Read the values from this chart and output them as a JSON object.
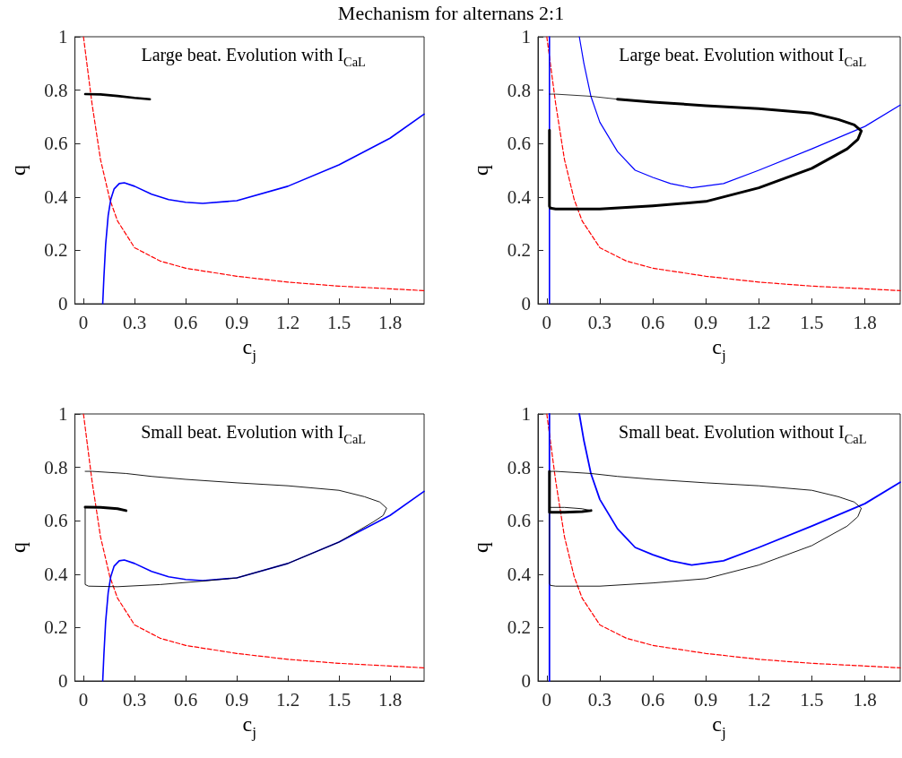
{
  "chart_data": [
    {
      "type": "line",
      "title": "Mechanism for alternans 2:1",
      "xlabel": "c$_{j}$",
      "ylabel": "q",
      "annotations": [
        "Large beat. Evolution with I$_{CaL}$"
      ],
      "xlim": [
        -0.05,
        2
      ],
      "ylim": [
        0,
        1
      ],
      "xticks": [
        0,
        0.3,
        0.6,
        0.9,
        1.2,
        1.5,
        1.8
      ],
      "yticks": [
        0,
        0.2,
        0.4,
        0.6,
        0.8,
        1
      ],
      "grid": false,
      "series": [
        {
          "color": "#ff0000",
          "line_style": "dashed",
          "x": [
            0.0,
            0.02,
            0.05,
            0.1,
            0.155,
            0.2,
            0.3,
            0.45,
            0.6,
            0.9,
            1.2,
            1.5,
            1.8,
            2.0
          ],
          "values": [
            1.0,
            0.9,
            0.75,
            0.54,
            0.39,
            0.31,
            0.21,
            0.16,
            0.133,
            0.103,
            0.081,
            0.066,
            0.056,
            0.049
          ]
        },
        {
          "color": "#0000ff",
          "x": [
            0.113,
            0.12,
            0.13,
            0.145,
            0.16,
            0.18,
            0.21,
            0.24,
            0.3,
            0.4,
            0.5,
            0.6,
            0.7,
            0.9,
            1.2,
            1.5,
            1.8,
            2.0
          ],
          "values": [
            0,
            0.1,
            0.22,
            0.33,
            0.39,
            0.43,
            0.45,
            0.453,
            0.44,
            0.41,
            0.39,
            0.38,
            0.376,
            0.386,
            0.44,
            0.52,
            0.62,
            0.71
          ]
        },
        {
          "color": "#000000",
          "x": [
            0.01,
            0.1,
            0.2,
            0.3,
            0.39
          ],
          "values": [
            0.785,
            0.784,
            0.778,
            0.771,
            0.766
          ]
        }
      ]
    },
    {
      "type": "line",
      "xlabel": "c$_{j}$",
      "ylabel": "q",
      "annotations": [
        "Large beat. Evolution without I$_{CaL}$"
      ],
      "xlim": [
        -0.05,
        2
      ],
      "ylim": [
        0,
        1
      ],
      "xticks": [
        0,
        0.3,
        0.6,
        0.9,
        1.2,
        1.5,
        1.8
      ],
      "yticks": [
        0,
        0.2,
        0.4,
        0.6,
        0.8,
        1
      ],
      "grid": false,
      "series": [
        {
          "color": "#ff0000",
          "line_style": "dashed",
          "x": [
            0.0,
            0.02,
            0.05,
            0.1,
            0.155,
            0.2,
            0.3,
            0.45,
            0.6,
            0.9,
            1.2,
            1.5,
            1.8,
            2.0
          ],
          "values": [
            1.0,
            0.9,
            0.75,
            0.54,
            0.39,
            0.31,
            0.21,
            0.16,
            0.133,
            0.103,
            0.081,
            0.066,
            0.056,
            0.049
          ]
        },
        {
          "color": "#0000ff",
          "x": [
            0.015,
            0.015
          ],
          "values": [
            0,
            1
          ]
        },
        {
          "color": "#0000ff",
          "x": [
            0.184,
            0.21,
            0.25,
            0.3,
            0.4,
            0.5,
            0.6,
            0.7,
            0.82,
            1.0,
            1.2,
            1.5,
            1.8,
            2.0
          ],
          "values": [
            1.0,
            0.9,
            0.776,
            0.68,
            0.57,
            0.5,
            0.473,
            0.45,
            0.434,
            0.45,
            0.5,
            0.58,
            0.664,
            0.744
          ]
        },
        {
          "color": "#000000",
          "x": [
            0.015,
            0.05,
            0.25,
            0.4
          ],
          "values": [
            0.785,
            0.785,
            0.777,
            0.766
          ]
        },
        {
          "color": "#000000",
          "x": [
            0.4,
            0.6,
            0.9,
            1.2,
            1.5,
            1.65,
            1.74,
            1.78,
            1.76,
            1.7,
            1.5,
            1.2,
            0.9,
            0.6,
            0.3,
            0.05,
            0.02,
            0.015,
            0.015
          ],
          "values": [
            0.766,
            0.755,
            0.742,
            0.731,
            0.714,
            0.69,
            0.67,
            0.647,
            0.615,
            0.58,
            0.507,
            0.434,
            0.383,
            0.367,
            0.355,
            0.355,
            0.358,
            0.365,
            0.65
          ]
        }
      ]
    },
    {
      "type": "line",
      "xlabel": "c$_{j}$",
      "ylabel": "q",
      "annotations": [
        "Small beat. Evolution with I$_{CaL}$"
      ],
      "xlim": [
        -0.05,
        2
      ],
      "ylim": [
        0,
        1
      ],
      "xticks": [
        0,
        0.3,
        0.6,
        0.9,
        1.2,
        1.5,
        1.8
      ],
      "yticks": [
        0,
        0.2,
        0.4,
        0.6,
        0.8,
        1
      ],
      "grid": false,
      "series": [
        {
          "color": "#ff0000",
          "line_style": "dashed",
          "x": [
            0.0,
            0.02,
            0.05,
            0.1,
            0.155,
            0.2,
            0.3,
            0.45,
            0.6,
            0.9,
            1.2,
            1.5,
            1.8,
            2.0
          ],
          "values": [
            1.0,
            0.9,
            0.75,
            0.54,
            0.39,
            0.31,
            0.21,
            0.16,
            0.133,
            0.103,
            0.081,
            0.066,
            0.056,
            0.049
          ]
        },
        {
          "color": "#0000ff",
          "x": [
            0.113,
            0.12,
            0.13,
            0.145,
            0.16,
            0.18,
            0.21,
            0.24,
            0.3,
            0.4,
            0.5,
            0.6,
            0.7,
            0.9,
            1.2,
            1.5,
            1.8,
            2.0
          ],
          "values": [
            0,
            0.1,
            0.22,
            0.33,
            0.39,
            0.43,
            0.45,
            0.453,
            0.44,
            0.41,
            0.39,
            0.38,
            0.376,
            0.386,
            0.44,
            0.52,
            0.62,
            0.71
          ]
        },
        {
          "color": "#000000",
          "x": [
            0.01,
            0.05,
            0.25,
            0.4,
            0.6,
            0.9,
            1.2,
            1.5,
            1.65,
            1.74,
            1.78,
            1.76,
            1.7,
            1.5,
            1.2,
            0.9,
            0.7,
            0.45,
            0.2,
            0.03,
            0.01,
            0.01
          ],
          "values": [
            0.785,
            0.785,
            0.777,
            0.766,
            0.755,
            0.742,
            0.731,
            0.714,
            0.69,
            0.67,
            0.647,
            0.62,
            0.595,
            0.52,
            0.44,
            0.386,
            0.374,
            0.361,
            0.353,
            0.355,
            0.361,
            0.65
          ]
        },
        {
          "color": "#000000",
          "x": [
            0.01,
            0.1,
            0.2,
            0.25
          ],
          "values": [
            0.651,
            0.65,
            0.645,
            0.638
          ]
        }
      ]
    },
    {
      "type": "line",
      "xlabel": "c$_{j}$",
      "ylabel": "q",
      "annotations": [
        "Small beat. Evolution without I$_{CaL}$"
      ],
      "xlim": [
        -0.05,
        2
      ],
      "ylim": [
        0,
        1
      ],
      "xticks": [
        0,
        0.3,
        0.6,
        0.9,
        1.2,
        1.5,
        1.8
      ],
      "yticks": [
        0,
        0.2,
        0.4,
        0.6,
        0.8,
        1
      ],
      "grid": false,
      "series": [
        {
          "color": "#ff0000",
          "line_style": "dashed",
          "x": [
            0.0,
            0.02,
            0.05,
            0.1,
            0.155,
            0.2,
            0.3,
            0.45,
            0.6,
            0.9,
            1.2,
            1.5,
            1.8,
            2.0
          ],
          "values": [
            1.0,
            0.9,
            0.75,
            0.54,
            0.39,
            0.31,
            0.21,
            0.16,
            0.133,
            0.103,
            0.081,
            0.066,
            0.056,
            0.049
          ]
        },
        {
          "color": "#0000ff",
          "x": [
            0.015,
            0.015
          ],
          "values": [
            0,
            1
          ]
        },
        {
          "color": "#0000ff",
          "x": [
            0.184,
            0.21,
            0.25,
            0.3,
            0.4,
            0.5,
            0.6,
            0.7,
            0.82,
            1.0,
            1.2,
            1.5,
            1.8,
            2.0
          ],
          "values": [
            1.0,
            0.9,
            0.776,
            0.68,
            0.57,
            0.5,
            0.473,
            0.45,
            0.434,
            0.45,
            0.5,
            0.58,
            0.664,
            0.744
          ]
        },
        {
          "color": "#000000",
          "x": [
            0.015,
            0.05,
            0.25,
            0.4,
            0.6,
            0.9,
            1.2,
            1.5,
            1.65,
            1.74,
            1.78,
            1.76,
            1.7,
            1.5,
            1.2,
            0.9,
            0.6,
            0.3,
            0.05,
            0.02,
            0.015,
            0.015
          ],
          "values": [
            0.785,
            0.785,
            0.777,
            0.766,
            0.755,
            0.742,
            0.731,
            0.714,
            0.69,
            0.67,
            0.647,
            0.615,
            0.58,
            0.507,
            0.434,
            0.383,
            0.367,
            0.355,
            0.355,
            0.358,
            0.365,
            0.632
          ]
        },
        {
          "color": "#000000",
          "x": [
            0.015,
            0.1,
            0.2,
            0.25
          ],
          "values": [
            0.65,
            0.65,
            0.645,
            0.638
          ]
        },
        {
          "color": "#000000",
          "x": [
            0.25,
            0.2,
            0.1,
            0.015,
            0.015
          ],
          "values": [
            0.638,
            0.634,
            0.632,
            0.632,
            0.785
          ]
        }
      ]
    }
  ]
}
